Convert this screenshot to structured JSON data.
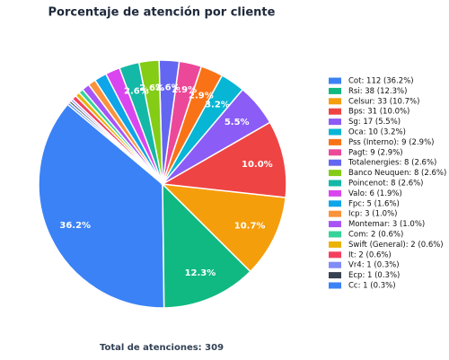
{
  "chart_data": {
    "type": "pie",
    "title": "Porcentaje de atención por cliente",
    "categories": [
      "Cot: 112 (36.2%)",
      "Rsi: 38 (12.3%)",
      "Celsur: 33 (10.7%)",
      "Bps: 31 (10.0%)",
      "Sg: 17 (5.5%)",
      "Oca: 10 (3.2%)",
      "Pss (Interno): 9 (2.9%)",
      "Pagt: 9 (2.9%)",
      "Totalenergies: 8 (2.6%)",
      "Banco Neuquen: 8 (2.6%)",
      "Poincenot: 8 (2.6%)",
      "Valo: 6 (1.9%)",
      "Fpc: 5 (1.6%)",
      "Icp: 3 (1.0%)",
      "Montemar: 3 (1.0%)",
      "Com: 2 (0.6%)",
      "Swift (General): 2 (0.6%)",
      "It: 2 (0.6%)",
      "Vr4: 1 (0.3%)",
      "Ecp: 1 (0.3%)",
      "Cc: 1 (0.3%)"
    ],
    "values": [
      36.2,
      12.3,
      10.7,
      10.0,
      5.5,
      3.2,
      2.9,
      2.9,
      2.6,
      2.6,
      2.6,
      1.9,
      1.6,
      1.0,
      1.0,
      0.6,
      0.6,
      0.6,
      0.3,
      0.3,
      0.3
    ],
    "value_labels": [
      "36.2%",
      "12.3%",
      "10.7%",
      "10.0%",
      "5.5%",
      "3.2%",
      "2.9%",
      "2.9%",
      "2.6%",
      "2.6%",
      "2.6%",
      null,
      null,
      null,
      null,
      null,
      null,
      null,
      null,
      null,
      null
    ],
    "colors": [
      "#3b82f6",
      "#10b981",
      "#f59e0b",
      "#ef4444",
      "#8b5cf6",
      "#06b6d4",
      "#f97316",
      "#ec4899",
      "#6366f1",
      "#84cc16",
      "#14b8a6",
      "#d946ef",
      "#0ea5e9",
      "#fb923c",
      "#a855f7",
      "#34d399",
      "#eab308",
      "#f43f5e",
      "#818cf8",
      "#374151",
      "#3b82f6"
    ],
    "legend": "right",
    "note": "Total de atenciones: 309"
  }
}
